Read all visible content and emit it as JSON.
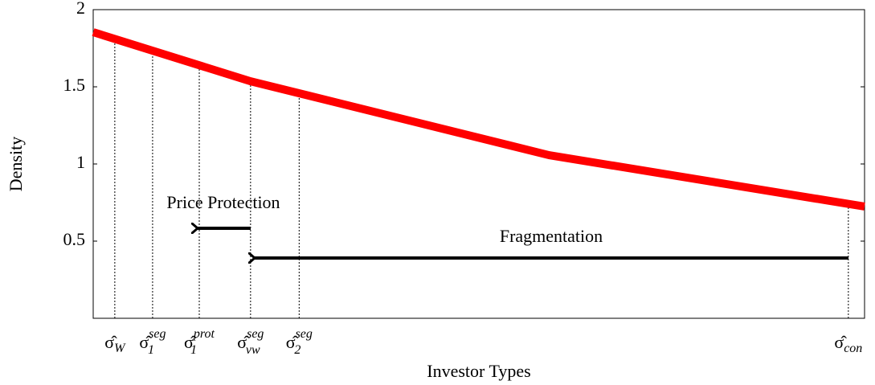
{
  "chart_data": {
    "type": "line",
    "xlabel": "Investor Types",
    "ylabel": "Density",
    "x": [
      0,
      0.204,
      0.591,
      1
    ],
    "series": [
      {
        "name": "Density",
        "color": "#ff0000",
        "values": [
          1.854,
          1.536,
          1.057,
          0.724
        ]
      }
    ],
    "xlim": [
      0,
      1
    ],
    "ylim": [
      0,
      2
    ],
    "yticks": [
      0.5,
      1,
      1.5,
      2
    ],
    "markers": [
      {
        "x": 0.028,
        "symbol": "σ̂",
        "sub": "W"
      },
      {
        "x": 0.077,
        "symbol": "σ̂",
        "sub": "1",
        "sup": "seg"
      },
      {
        "x": 0.1375,
        "symbol": "σ̂",
        "sub": "1",
        "sup": "prot"
      },
      {
        "x": 0.204,
        "symbol": "σ̂",
        "sub": "vw",
        "sup": "seg"
      },
      {
        "x": 0.267,
        "symbol": "σ̂",
        "sub": "2",
        "sup": "seg"
      },
      {
        "x": 0.979,
        "symbol": "σ̂",
        "sub": "con"
      }
    ],
    "annotations": [
      "Price Protection",
      "Fragmentation"
    ]
  }
}
